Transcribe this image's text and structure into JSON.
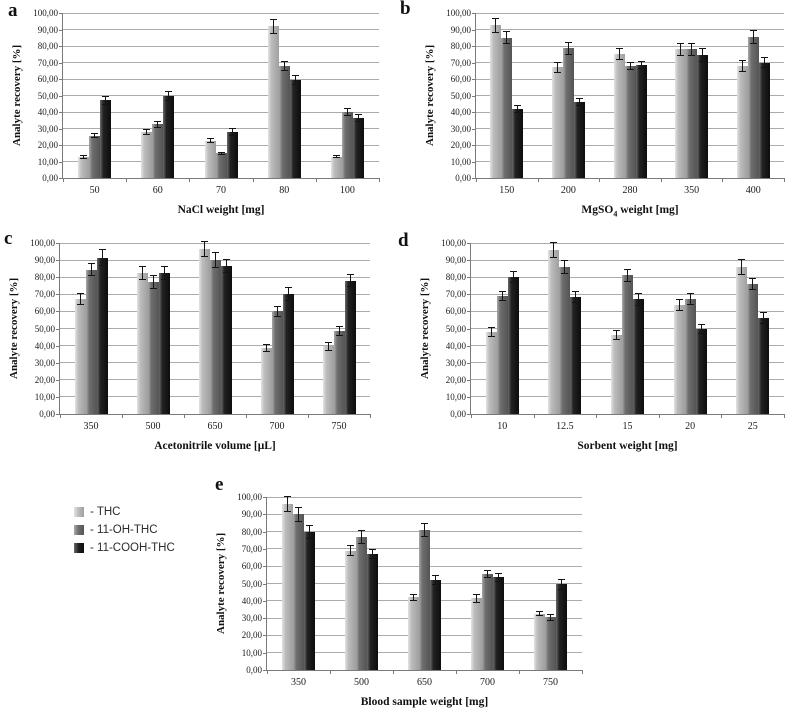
{
  "figure": {
    "legend": {
      "items": [
        {
          "label": "- THC",
          "series": "THC"
        },
        {
          "label": "- 11-OH-THC",
          "series": "11-OH-THC"
        },
        {
          "label": "- 11-COOH-THC",
          "series": "11-COOH-THC"
        }
      ]
    },
    "series_styles": [
      {
        "name": "THC",
        "color": "#b3b3b3",
        "gradient": [
          "#e3e3e3",
          "#bdbdbd",
          "#9f9f9f"
        ]
      },
      {
        "name": "11-OH-THC",
        "color": "#5f5f5f",
        "gradient": [
          "#a9a9a9",
          "#6e6e6e",
          "#545454"
        ]
      },
      {
        "name": "11-COOH-THC",
        "color": "#141414",
        "gradient": [
          "#6a6a6a",
          "#222222",
          "#0d0d0d"
        ]
      }
    ],
    "axis": {
      "ytick_labels": [
        "100,00",
        "90,00",
        "80,00",
        "70,00",
        "60,00",
        "50,00",
        "40,00",
        "30,00",
        "20,00",
        "10,00",
        "0,00"
      ],
      "error_bar_color": "#141414"
    }
  },
  "chart_data": [
    {
      "id": "a",
      "panel_label": "a",
      "type": "bar",
      "xlabel": "NaCl weight [mg]",
      "xlabel_parts": [
        "NaCl weight [mg]"
      ],
      "ylabel": "Analyte recovery [%]",
      "ylim": [
        0,
        100
      ],
      "ytick_step": 10,
      "grid": true,
      "legend_position": "none",
      "categories": [
        "50",
        "60",
        "70",
        "80",
        "100"
      ],
      "series": [
        {
          "name": "THC",
          "values": [
            12.5,
            28,
            22.5,
            92,
            13
          ],
          "errors": [
            1.2,
            2,
            1.5,
            4.5,
            1
          ]
        },
        {
          "name": "11-OH-THC",
          "values": [
            25.5,
            32.5,
            15,
            68,
            40
          ],
          "errors": [
            1.5,
            2,
            1,
            3,
            2.5
          ]
        },
        {
          "name": "11-COOH-THC",
          "values": [
            47,
            49.5,
            28,
            59.5,
            36.5
          ],
          "errors": [
            3,
            3,
            2.5,
            3,
            2.5
          ]
        }
      ]
    },
    {
      "id": "b",
      "panel_label": "b",
      "type": "bar",
      "xlabel": "MgSO4 weight [mg]",
      "xlabel_parts": [
        "MgSO",
        {
          "sub": "4"
        },
        " weight [mg]"
      ],
      "ylabel": "Analyte recovery [%]",
      "ylim": [
        0,
        100
      ],
      "ytick_step": 10,
      "grid": true,
      "legend_position": "none",
      "categories": [
        "150",
        "200",
        "280",
        "350",
        "400"
      ],
      "series": [
        {
          "name": "THC",
          "values": [
            92.5,
            67,
            75,
            78,
            68
          ],
          "errors": [
            4.5,
            3.5,
            3.5,
            4,
            3.5
          ]
        },
        {
          "name": "11-OH-THC",
          "values": [
            85,
            78.5,
            68,
            78,
            85.5
          ],
          "errors": [
            4,
            4,
            2.5,
            4,
            4
          ]
        },
        {
          "name": "11-COOH-THC",
          "values": [
            42,
            46,
            68.5,
            74.5,
            70
          ],
          "errors": [
            2.5,
            2.5,
            2.5,
            4,
            3.5
          ]
        }
      ]
    },
    {
      "id": "c",
      "panel_label": "c",
      "type": "bar",
      "xlabel": "Acetonitrile volume [μL]",
      "xlabel_parts": [
        "Acetonitrile volume [μL]"
      ],
      "ylabel": "Analyte recovery [%]",
      "ylim": [
        0,
        100
      ],
      "ytick_step": 10,
      "grid": true,
      "legend_position": "none",
      "categories": [
        "350",
        "500",
        "650",
        "700",
        "750"
      ],
      "series": [
        {
          "name": "THC",
          "values": [
            67.5,
            82.5,
            96.5,
            38.5,
            39.5
          ],
          "errors": [
            3.5,
            4,
            4.5,
            2.5,
            2.5
          ]
        },
        {
          "name": "11-OH-THC",
          "values": [
            84.5,
            77,
            90,
            60,
            48.5
          ],
          "errors": [
            4,
            4,
            4.5,
            3,
            3
          ]
        },
        {
          "name": "11-COOH-THC",
          "values": [
            91.5,
            82.5,
            86.5,
            70,
            78
          ],
          "errors": [
            5,
            4,
            4,
            4,
            4
          ]
        }
      ]
    },
    {
      "id": "d",
      "panel_label": "d",
      "type": "bar",
      "xlabel": "Sorbent weight [mg]",
      "xlabel_parts": [
        "Sorbent weight [mg]"
      ],
      "ylabel": "Analyte recovery [%]",
      "ylim": [
        0,
        100
      ],
      "ytick_step": 10,
      "grid": true,
      "legend_position": "none",
      "categories": [
        "10",
        "12.5",
        "15",
        "20",
        "25"
      ],
      "series": [
        {
          "name": "THC",
          "values": [
            48,
            96,
            46,
            63.5,
            86
          ],
          "errors": [
            3,
            4.5,
            3,
            3.5,
            4.5
          ]
        },
        {
          "name": "11-OH-THC",
          "values": [
            69,
            86,
            81,
            67.5,
            76
          ],
          "errors": [
            3,
            4,
            4,
            3.5,
            3.5
          ]
        },
        {
          "name": "11-COOH-THC",
          "values": [
            80,
            68.5,
            67,
            49.5,
            56
          ],
          "errors": [
            3.5,
            3.5,
            4,
            3,
            3.5
          ]
        }
      ]
    },
    {
      "id": "e",
      "panel_label": "e",
      "type": "bar",
      "xlabel": "Blood sample weight [mg]",
      "xlabel_parts": [
        "Blood sample weight [mg]"
      ],
      "ylabel": "Analyte recovery [%]",
      "ylim": [
        0,
        100
      ],
      "ytick_step": 10,
      "grid": true,
      "legend_position": "left-of-chart",
      "categories": [
        "350",
        "500",
        "650",
        "700",
        "750"
      ],
      "series": [
        {
          "name": "THC",
          "values": [
            96,
            69,
            42,
            41.5,
            32.5
          ],
          "errors": [
            4.5,
            3,
            2,
            2.5,
            1.5
          ]
        },
        {
          "name": "11-OH-THC",
          "values": [
            90,
            77,
            81,
            55.5,
            30.5
          ],
          "errors": [
            4.5,
            4,
            4,
            2.5,
            2
          ]
        },
        {
          "name": "11-COOH-THC",
          "values": [
            80,
            67,
            52,
            53.5,
            49.5
          ],
          "errors": [
            4,
            3,
            3,
            2.5,
            3
          ]
        }
      ]
    }
  ]
}
